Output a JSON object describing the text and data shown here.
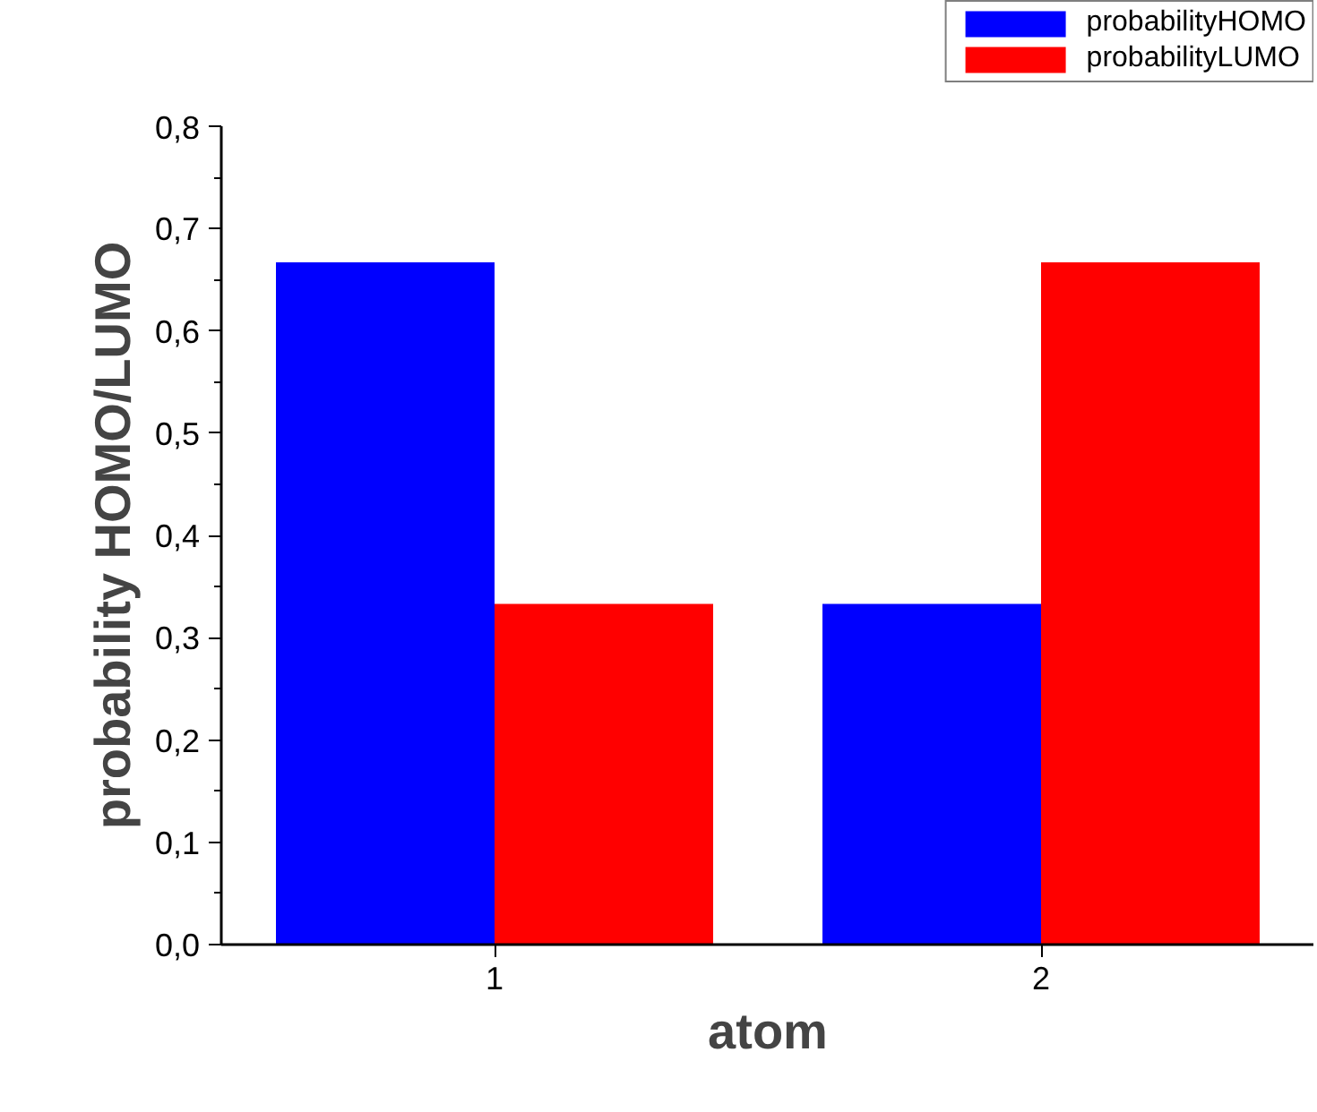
{
  "chart_data": {
    "type": "bar",
    "xlabel": "atom",
    "ylabel": "probability HOMO/LUMO",
    "categories": [
      "1",
      "2"
    ],
    "series": [
      {
        "name": "probabilityHOMO",
        "color": "#0000ff",
        "values": [
          0.667,
          0.333
        ]
      },
      {
        "name": "probabilityLUMO",
        "color": "#ff0000",
        "values": [
          0.333,
          0.667
        ]
      }
    ],
    "ylim": [
      0,
      0.8
    ],
    "yticks": [
      {
        "value": 0,
        "label": "0,0"
      },
      {
        "value": 0.1,
        "label": "0,1"
      },
      {
        "value": 0.2,
        "label": "0,2"
      },
      {
        "value": 0.3,
        "label": "0,3"
      },
      {
        "value": 0.4,
        "label": "0,4"
      },
      {
        "value": 0.5,
        "label": "0,5"
      },
      {
        "value": 0.6,
        "label": "0,6"
      },
      {
        "value": 0.7,
        "label": "0,7"
      },
      {
        "value": 0.8,
        "label": "0,8"
      }
    ],
    "grid": false,
    "legend": "top right"
  }
}
